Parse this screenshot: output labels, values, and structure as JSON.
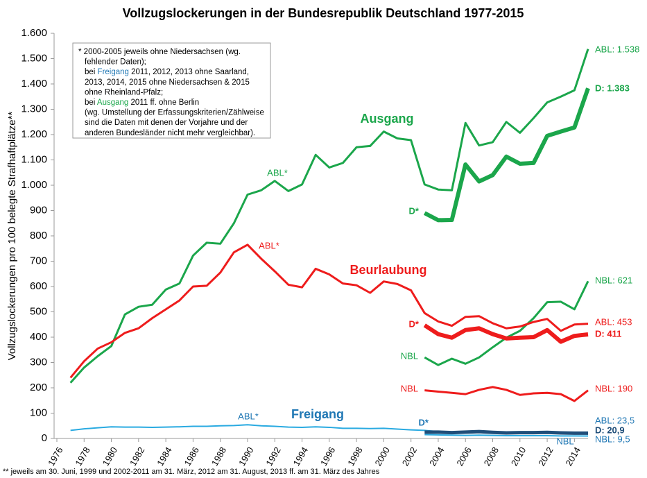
{
  "chart_data": {
    "type": "line",
    "title": "Vollzugslockerungen in der Bundesrepublik Deutschland 1977-2015",
    "y_label": "Vollzugslockerungen pro 100 belegte Strafhaftplätze**",
    "footnote": "** jeweils am 30. Juni, 1999 und 2002-2011 am 31. März, 2012 am 31. August, 2013 ff. am 31. März des Jahres",
    "x": [
      1977,
      1978,
      1979,
      1980,
      1981,
      1982,
      1983,
      1984,
      1985,
      1986,
      1987,
      1988,
      1989,
      1990,
      1991,
      1992,
      1993,
      1994,
      1995,
      1996,
      1997,
      1998,
      1999,
      2000,
      2001,
      2002,
      2003,
      2004,
      2005,
      2006,
      2007,
      2008,
      2009,
      2010,
      2011,
      2012,
      2013,
      2014,
      2015
    ],
    "xlim": [
      1976,
      2015
    ],
    "xticks": [
      1976,
      1978,
      1980,
      1982,
      1984,
      1986,
      1988,
      1990,
      1992,
      1994,
      1996,
      1998,
      2000,
      2002,
      2004,
      2006,
      2008,
      2010,
      2012,
      2014
    ],
    "ylim": [
      0,
      1600
    ],
    "yticks": [
      0,
      100,
      200,
      300,
      400,
      500,
      600,
      700,
      800,
      900,
      {
        "value": 1000,
        "label": "1.000"
      },
      {
        "value": 1100,
        "label": "1.100"
      },
      {
        "value": 1200,
        "label": "1.200"
      },
      {
        "value": 1300,
        "label": "1.300"
      },
      {
        "value": 1400,
        "label": "1.400"
      },
      {
        "value": 1500,
        "label": "1.500"
      },
      {
        "value": 1600,
        "label": "1.600"
      }
    ],
    "grid": false,
    "series": [
      {
        "color": "#1ba64b",
        "width": 3,
        "values": [
          220,
          280,
          325,
          365,
          490,
          520,
          528,
          588,
          612,
          722,
          773,
          769,
          850,
          963,
          980,
          1017,
          977,
          1003,
          1120,
          1070,
          1088,
          1150,
          1155,
          1212,
          1185,
          1178,
          1003,
          983,
          980,
          1246,
          1157,
          1170,
          1250,
          1207,
          1265,
          1327,
          1350,
          1375,
          1538
        ]
      },
      {
        "color": "#1ba64b",
        "width": 6,
        "values": [
          null,
          null,
          null,
          null,
          null,
          null,
          null,
          null,
          null,
          null,
          null,
          null,
          null,
          null,
          null,
          null,
          null,
          null,
          null,
          null,
          null,
          null,
          null,
          null,
          null,
          null,
          890,
          862,
          863,
          1082,
          1015,
          1040,
          1113,
          1085,
          1088,
          1195,
          1212,
          1228,
          1383
        ]
      },
      {
        "color": "#1ba64b",
        "width": 3,
        "values": [
          null,
          null,
          null,
          null,
          null,
          null,
          null,
          null,
          null,
          null,
          null,
          null,
          null,
          null,
          null,
          null,
          null,
          null,
          null,
          null,
          null,
          null,
          null,
          null,
          null,
          null,
          320,
          290,
          315,
          295,
          320,
          360,
          398,
          425,
          475,
          538,
          540,
          510,
          621
        ]
      },
      {
        "color": "#ee1c1c",
        "width": 3,
        "values": [
          240,
          305,
          355,
          380,
          417,
          435,
          475,
          510,
          545,
          600,
          603,
          655,
          735,
          765,
          710,
          660,
          607,
          597,
          670,
          648,
          612,
          605,
          575,
          620,
          610,
          585,
          495,
          462,
          445,
          480,
          483,
          455,
          435,
          442,
          460,
          472,
          425,
          450,
          453
        ]
      },
      {
        "color": "#ee1c1c",
        "width": 6,
        "values": [
          null,
          null,
          null,
          null,
          null,
          null,
          null,
          null,
          null,
          null,
          null,
          null,
          null,
          null,
          null,
          null,
          null,
          null,
          null,
          null,
          null,
          null,
          null,
          null,
          null,
          null,
          447,
          412,
          398,
          428,
          435,
          412,
          395,
          398,
          400,
          428,
          382,
          405,
          411
        ]
      },
      {
        "color": "#ee1c1c",
        "width": 3,
        "values": [
          null,
          null,
          null,
          null,
          null,
          null,
          null,
          null,
          null,
          null,
          null,
          null,
          null,
          null,
          null,
          null,
          null,
          null,
          null,
          null,
          null,
          null,
          null,
          null,
          null,
          null,
          190,
          185,
          180,
          175,
          192,
          203,
          192,
          172,
          178,
          180,
          175,
          148,
          190
        ]
      },
      {
        "color": "#29aae1",
        "width": 2,
        "values": [
          32,
          38,
          42,
          46,
          45,
          45,
          44,
          45,
          46,
          48,
          48,
          50,
          51,
          54,
          50,
          48,
          45,
          44,
          46,
          44,
          40,
          40,
          39,
          40,
          37,
          34,
          32,
          27,
          26,
          24,
          25,
          24,
          23,
          24,
          24,
          23,
          23,
          22,
          23.5
        ]
      },
      {
        "color": "#1f4e79",
        "width": 5,
        "values": [
          null,
          null,
          null,
          null,
          null,
          null,
          null,
          null,
          null,
          null,
          null,
          null,
          null,
          null,
          null,
          null,
          null,
          null,
          null,
          null,
          null,
          null,
          null,
          null,
          null,
          null,
          25,
          25,
          23,
          25,
          27,
          24,
          22,
          23,
          23,
          24,
          22,
          21,
          20.9
        ]
      },
      {
        "color": "#29aae1",
        "width": 2,
        "values": [
          null,
          null,
          null,
          null,
          null,
          null,
          null,
          null,
          null,
          null,
          null,
          null,
          null,
          null,
          null,
          null,
          null,
          null,
          null,
          null,
          null,
          null,
          null,
          null,
          null,
          null,
          15,
          14,
          13,
          12,
          13,
          12,
          11,
          11,
          11,
          11,
          10,
          10,
          9.5
        ]
      }
    ],
    "annotations": [
      {
        "text": "ABL: 1.538",
        "color": "#1ba64b"
      },
      {
        "text": "D: 1.383",
        "color": "#1ba64b",
        "bold": true
      },
      {
        "text": "NBL: 621",
        "color": "#1ba64b"
      },
      {
        "text": "ABL: 453",
        "color": "#ee1c1c"
      },
      {
        "text": "D: 411",
        "color": "#ee1c1c",
        "bold": true
      },
      {
        "text": "NBL: 190",
        "color": "#ee1c1c"
      },
      {
        "text": "ABL: 23,5",
        "color": "#1f77b4"
      },
      {
        "text": "D: 20,9",
        "color": "#1f4e79",
        "bold": true
      },
      {
        "text": "NBL: 9,5",
        "color": "#1f77b4"
      },
      {
        "text": "ABL*",
        "color": "#1ba64b"
      },
      {
        "text": "ABL*",
        "color": "#ee1c1c"
      },
      {
        "text": "ABL*",
        "color": "#1f77b4"
      },
      {
        "text": "D*",
        "color": "#1ba64b",
        "bold": true
      },
      {
        "text": "D*",
        "color": "#ee1c1c",
        "bold": true
      },
      {
        "text": "D*",
        "color": "#1f77b4",
        "bold": true
      },
      {
        "text": "NBL",
        "color": "#1ba64b"
      },
      {
        "text": "NBL",
        "color": "#ee1c1c"
      },
      {
        "text": "NBL",
        "color": "#1f77b4"
      },
      {
        "text": "Ausgang",
        "color": "#1ba64b",
        "bold": true
      },
      {
        "text": "Beurlaubung",
        "color": "#ee1c1c",
        "bold": true
      },
      {
        "text": "Freigang",
        "color": "#1f77b4",
        "bold": true
      }
    ],
    "note": [
      [
        {
          "text": "* 2000-2005 jeweils ohne Niedersachsen (wg."
        }
      ],
      [
        {
          "text": "fehlender Daten);"
        }
      ],
      [
        {
          "text": "bei "
        },
        {
          "text": "Freigang",
          "color": "#1f77b4"
        },
        {
          "text": " 2011, 2012, 2013 ohne Saarland,"
        }
      ],
      [
        {
          "text": "2013, 2014, 2015 ohne Niedersachsen & 2015"
        }
      ],
      [
        {
          "text": "ohne Rheinland-Pfalz;"
        }
      ],
      [
        {
          "text": "bei "
        },
        {
          "text": "Ausgang",
          "color": "#1ba64b"
        },
        {
          "text": " 2011 ff. ohne Berlin"
        }
      ],
      [
        {
          "text": "(wg. Umstellung der Erfassungskriterien/Zählweise"
        }
      ],
      [
        {
          "text": "sind die Daten mit denen der Vorjahre und der"
        }
      ],
      [
        {
          "text": "anderen Bundesländer nicht mehr vergleichbar)."
        }
      ]
    ]
  }
}
